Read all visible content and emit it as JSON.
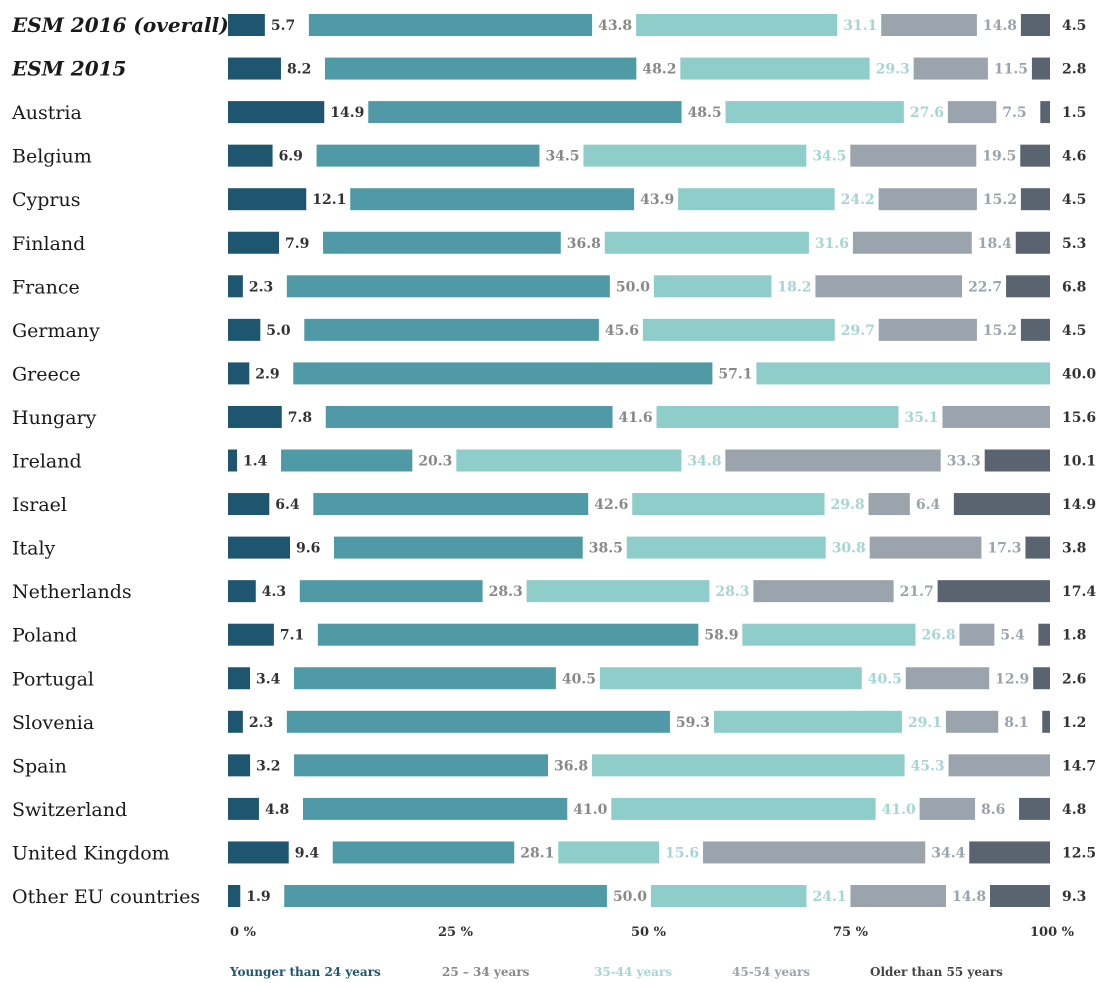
{
  "chart_data": {
    "type": "bar",
    "orientation": "horizontal",
    "stacked": true,
    "categories": [
      "ESM 2016 (overall)",
      "ESM 2015",
      "Austria",
      "Belgium",
      "Cyprus",
      "Finland",
      "France",
      "Germany",
      "Greece",
      "Hungary",
      "Ireland",
      "Israel",
      "Italy",
      "Netherlands",
      "Poland",
      "Portugal",
      "Slovenia",
      "Spain",
      "Switzerland",
      "United Kingdom",
      "Other EU countries"
    ],
    "emphasized_categories": [
      "ESM 2016 (overall)",
      "ESM 2015"
    ],
    "series": [
      {
        "name": "Younger than 24 years",
        "color": "#1e5670",
        "values": [
          5.7,
          8.2,
          14.9,
          6.9,
          12.1,
          7.9,
          2.3,
          5.0,
          2.9,
          7.8,
          1.4,
          6.4,
          9.6,
          4.3,
          7.1,
          3.4,
          2.3,
          3.2,
          4.8,
          9.4,
          1.9
        ]
      },
      {
        "name": "25 – 34 years",
        "color": "#4f9aa6",
        "values": [
          43.8,
          48.2,
          48.5,
          34.5,
          43.9,
          36.8,
          50.0,
          45.6,
          57.1,
          41.6,
          20.3,
          42.6,
          38.5,
          28.3,
          58.9,
          40.5,
          59.3,
          36.8,
          41.0,
          28.1,
          50.0
        ]
      },
      {
        "name": "35-44 years",
        "color": "#8ecdca",
        "values": [
          31.1,
          29.3,
          27.6,
          34.5,
          24.2,
          31.6,
          18.2,
          29.7,
          40.0,
          35.1,
          34.8,
          29.8,
          30.8,
          28.3,
          26.8,
          40.5,
          29.1,
          45.3,
          41.0,
          15.6,
          24.1
        ]
      },
      {
        "name": "45-54 years",
        "color": "#9ba3ac",
        "values": [
          14.8,
          11.5,
          7.5,
          19.5,
          15.2,
          18.4,
          22.7,
          15.2,
          null,
          15.6,
          33.3,
          6.4,
          17.3,
          21.7,
          5.4,
          12.9,
          8.1,
          14.7,
          8.6,
          34.4,
          14.8
        ]
      },
      {
        "name": "Older than 55 years",
        "color": "#5a6470",
        "values": [
          4.5,
          2.8,
          1.5,
          4.6,
          4.5,
          5.3,
          6.8,
          4.5,
          null,
          null,
          10.1,
          14.9,
          3.8,
          17.4,
          1.8,
          2.6,
          1.2,
          null,
          4.8,
          12.5,
          9.3
        ]
      }
    ],
    "label_colors": [
      "#333333",
      "#888888",
      "#a6d6d4",
      "#9ba3ac",
      "#333333"
    ],
    "xticks": [
      "0 %",
      "25 %",
      "50 %",
      "75 %",
      "100 %"
    ],
    "xlim": [
      0,
      100
    ],
    "legend_position": "bottom",
    "title": "",
    "xlabel": "",
    "ylabel": ""
  }
}
